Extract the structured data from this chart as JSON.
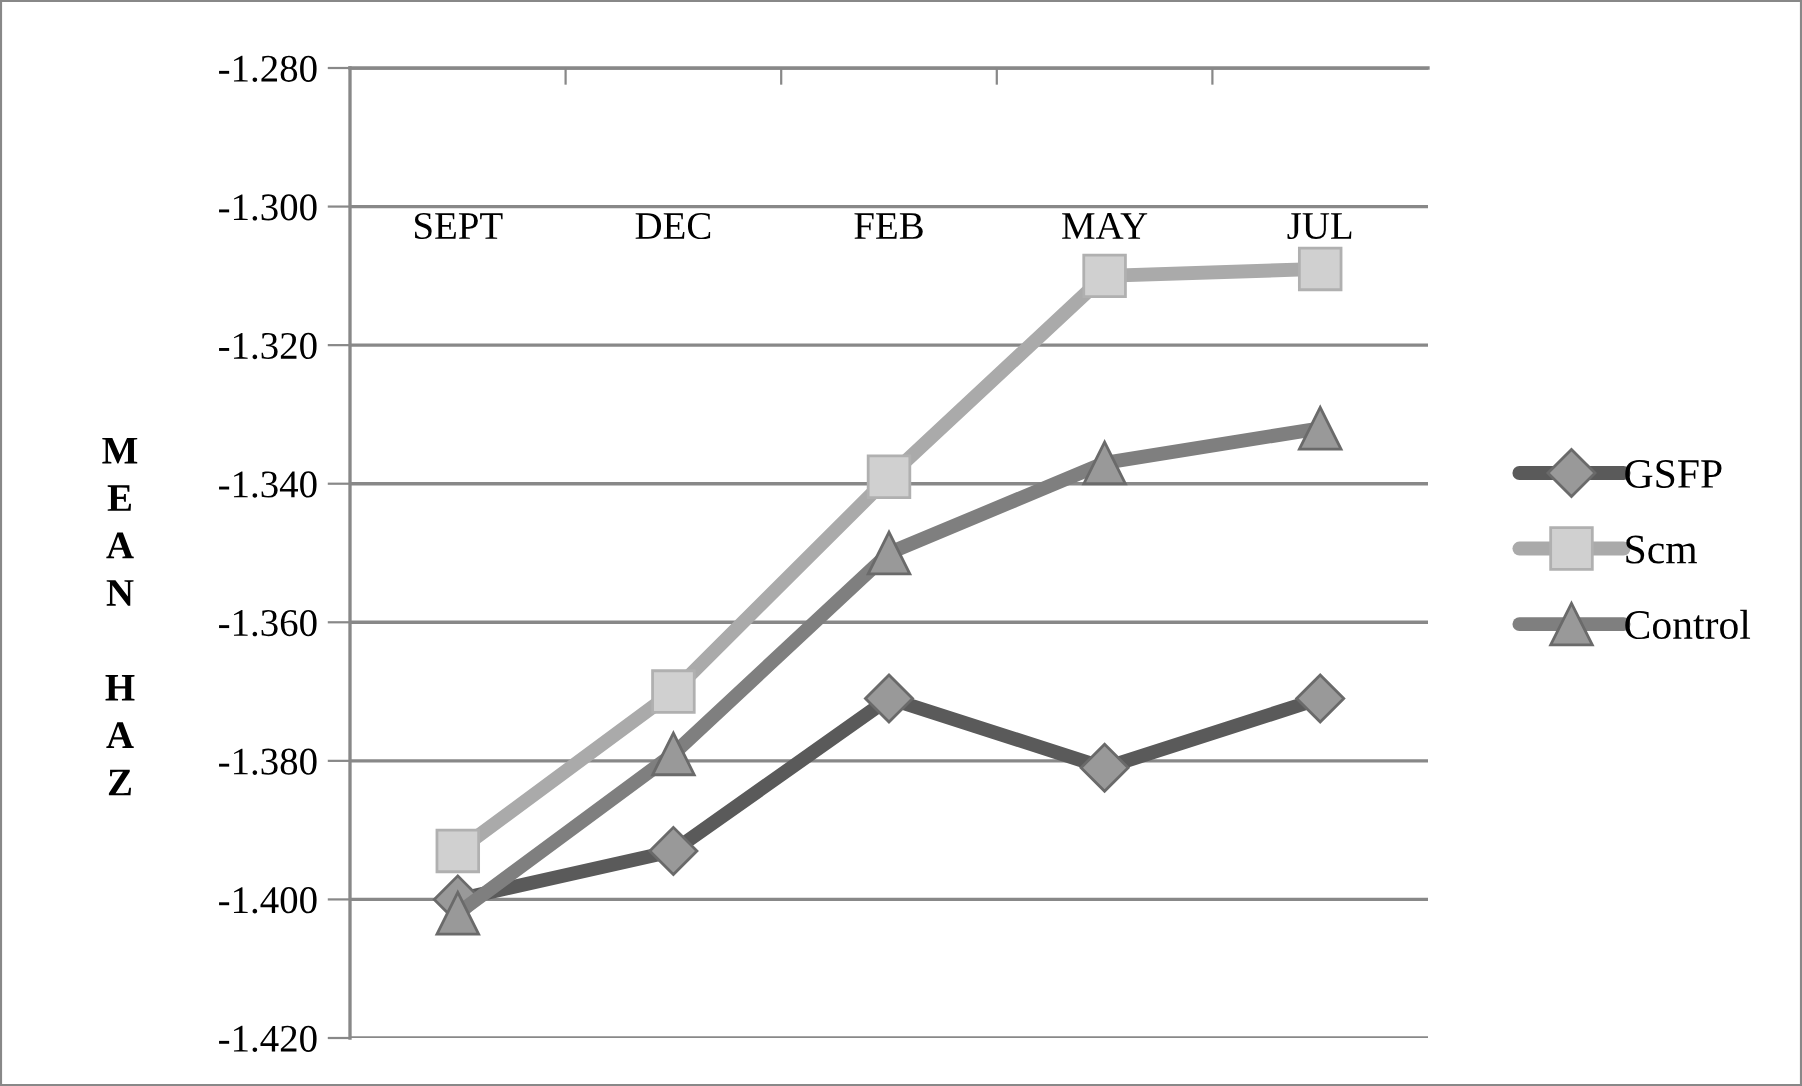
{
  "chart_data": {
    "type": "line",
    "ylabel": "MEAN HAZ",
    "categories": [
      "SEPT",
      "DEC",
      "FEB",
      "MAY",
      "JUL"
    ],
    "series": [
      {
        "name": "GSFP",
        "color": "#5a5a5a",
        "marker": "diamond",
        "values": [
          -1.4,
          -1.393,
          -1.371,
          -1.381,
          -1.371
        ]
      },
      {
        "name": "Scm",
        "color": "#aaaaaa",
        "marker": "square",
        "values": [
          -1.393,
          -1.37,
          -1.339,
          -1.31,
          -1.309
        ]
      },
      {
        "name": "Control",
        "color": "#7f7f7f",
        "marker": "triangle",
        "values": [
          -1.402,
          -1.379,
          -1.35,
          -1.337,
          -1.332
        ]
      }
    ],
    "ylim": [
      -1.42,
      -1.28
    ],
    "yticks": [
      {
        "value": -1.42,
        "label": "-1.420"
      },
      {
        "value": -1.4,
        "label": "-1.400"
      },
      {
        "value": -1.38,
        "label": "-1.380"
      },
      {
        "value": -1.36,
        "label": "-1.360"
      },
      {
        "value": -1.34,
        "label": "-1.340"
      },
      {
        "value": -1.32,
        "label": "-1.320"
      },
      {
        "value": -1.3,
        "label": "-1.300"
      },
      {
        "value": -1.28,
        "label": "-1.280"
      }
    ],
    "grid": "y",
    "legend": "right",
    "line_style": "solid"
  }
}
